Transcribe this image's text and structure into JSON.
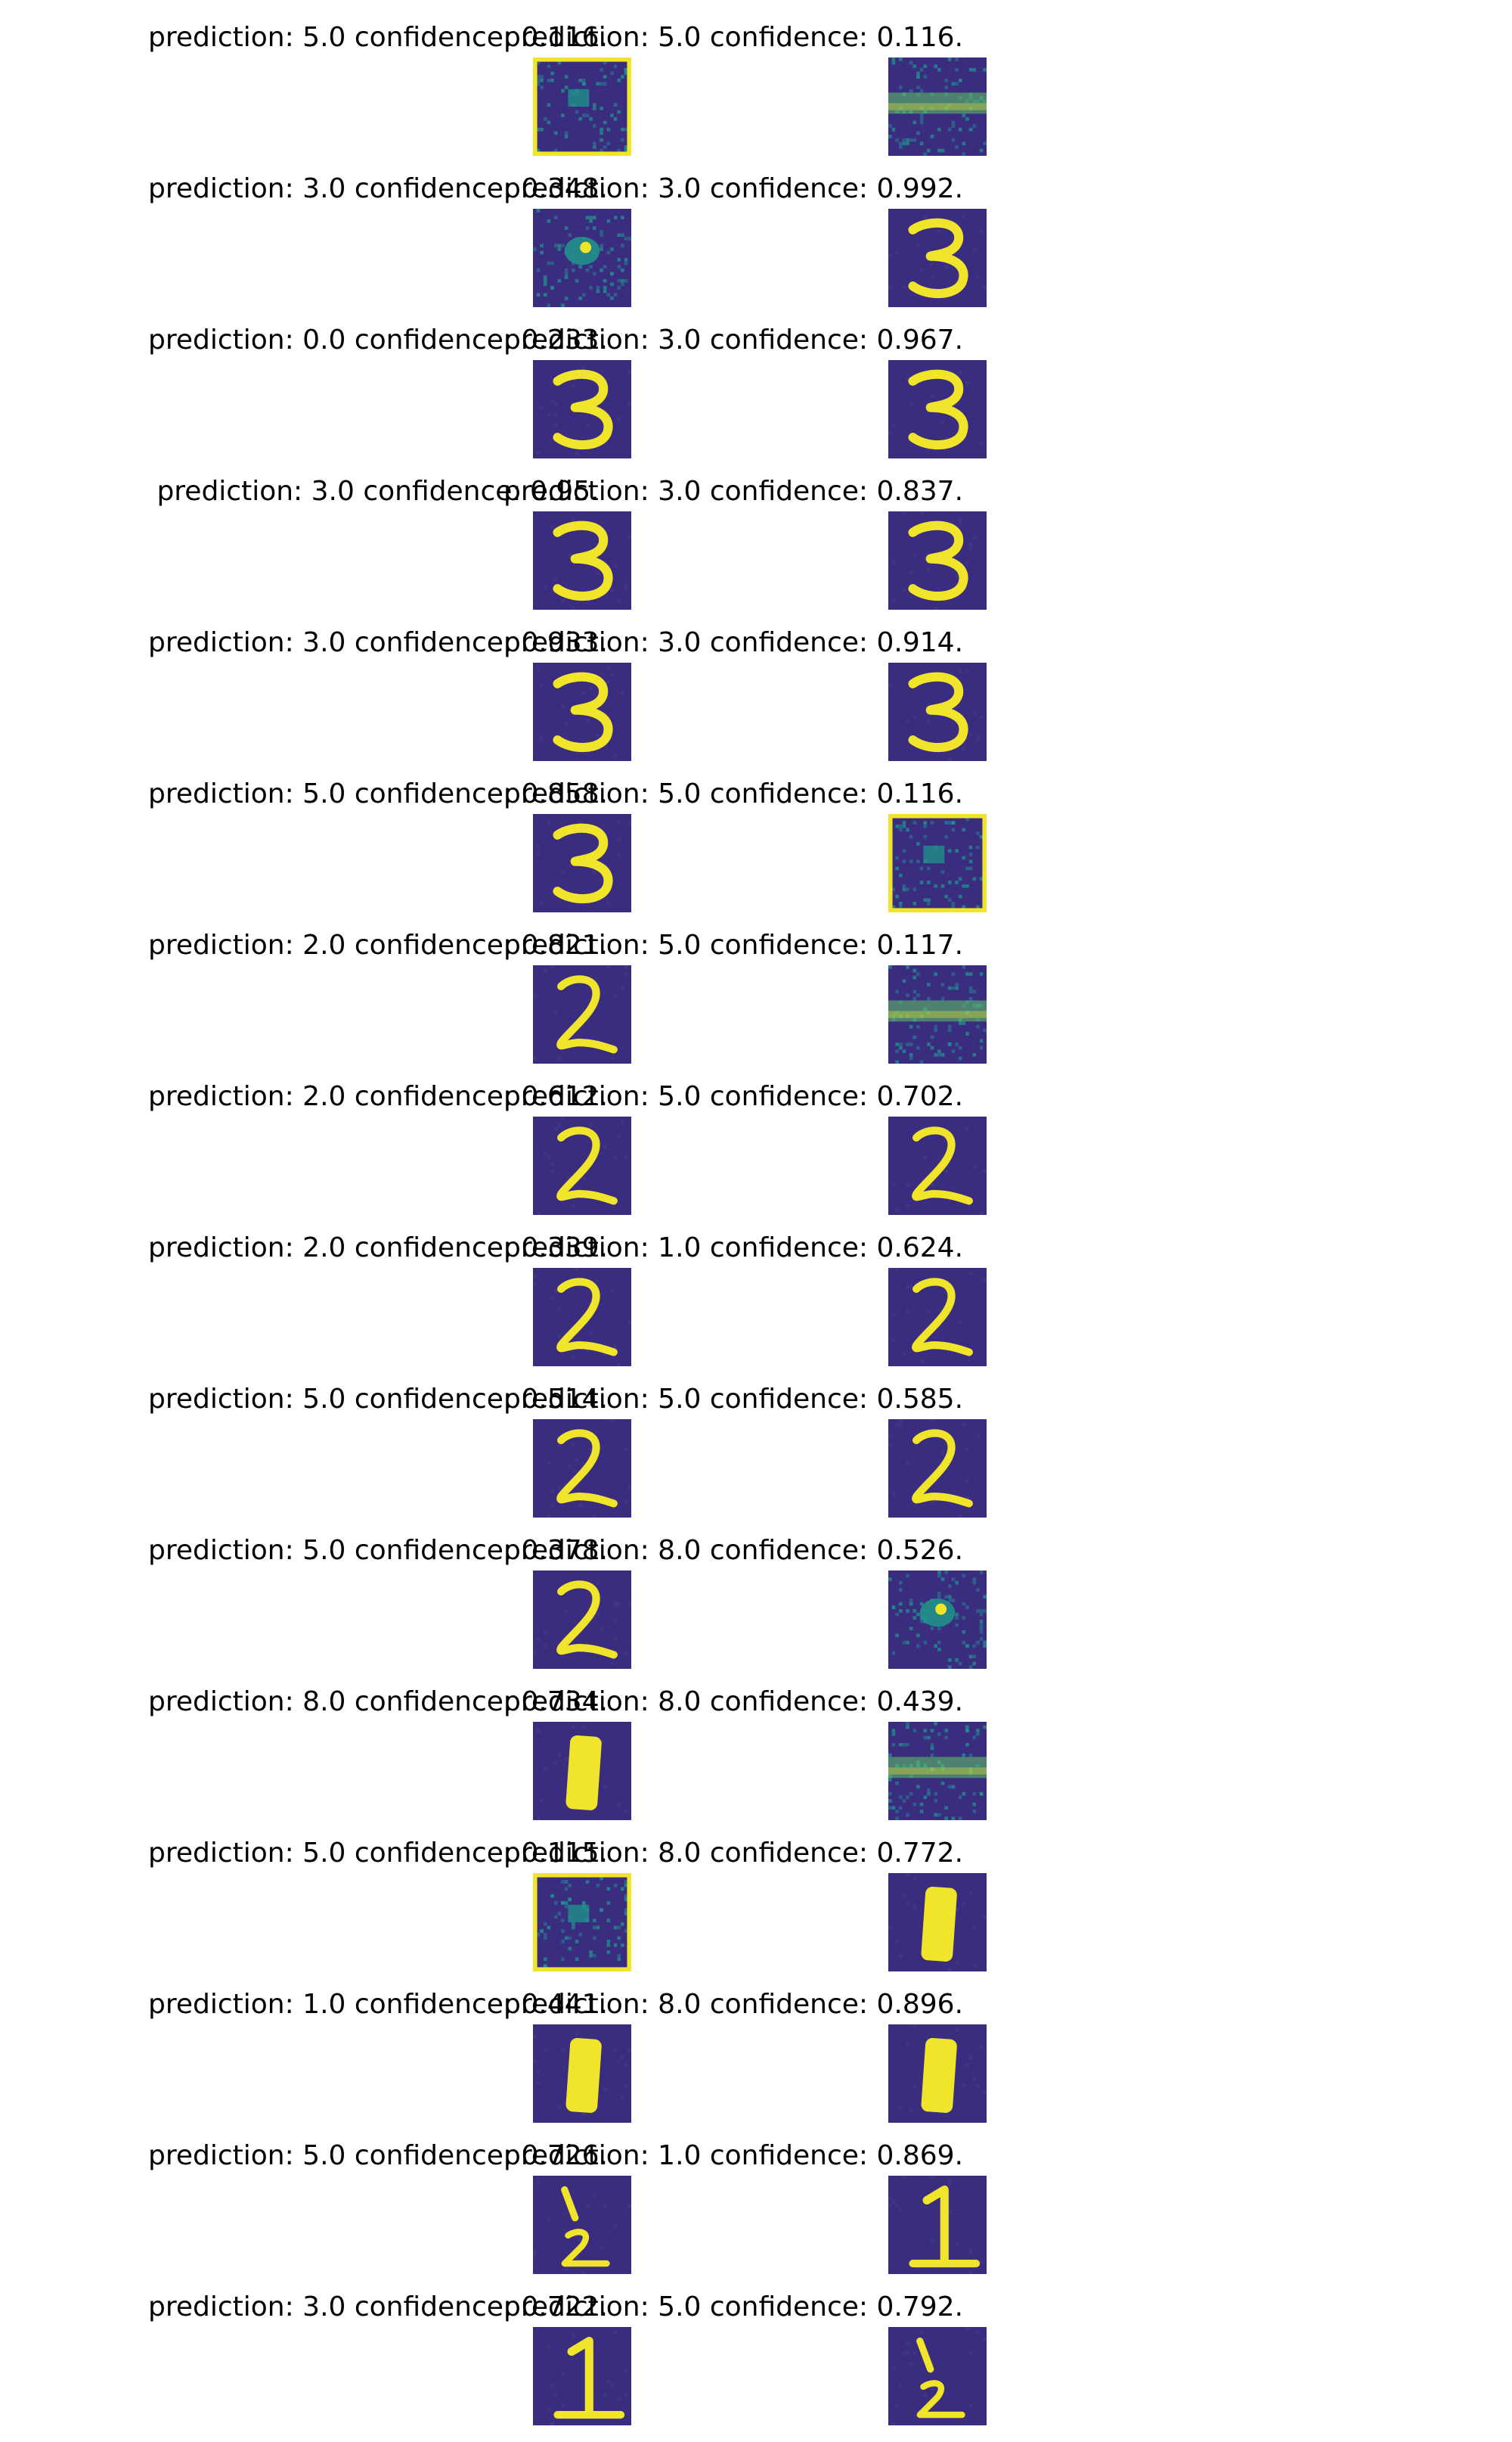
{
  "colors": {
    "background": "#3a2c7f",
    "stroke": "#f0e52a",
    "mid": "#21918c",
    "bright": "#5ec962"
  },
  "rows": [
    {
      "left": {
        "caption": "prediction: 5.0 confidence: 0.116.",
        "image": "noise-frame"
      },
      "right": {
        "caption": "prediction: 5.0 confidence: 0.116.",
        "image": "noise-band"
      }
    },
    {
      "left": {
        "caption": "prediction: 3.0 confidence: 0.348.",
        "image": "noise-blob"
      },
      "right": {
        "caption": "prediction: 3.0 confidence: 0.992.",
        "image": "digit-3"
      }
    },
    {
      "left": {
        "caption": "prediction: 0.0 confidence: 0.233.",
        "image": "digit-3"
      },
      "right": {
        "caption": "prediction: 3.0 confidence: 0.967.",
        "image": "digit-3"
      }
    },
    {
      "left": {
        "caption": "prediction: 3.0 confidence: 0.95.",
        "image": "digit-3"
      },
      "right": {
        "caption": "prediction: 3.0 confidence: 0.837.",
        "image": "digit-3"
      }
    },
    {
      "left": {
        "caption": "prediction: 3.0 confidence: 0.933.",
        "image": "digit-3"
      },
      "right": {
        "caption": "prediction: 3.0 confidence: 0.914.",
        "image": "digit-3"
      }
    },
    {
      "left": {
        "caption": "prediction: 5.0 confidence: 0.858.",
        "image": "digit-3"
      },
      "right": {
        "caption": "prediction: 5.0 confidence: 0.116.",
        "image": "noise-frame"
      }
    },
    {
      "left": {
        "caption": "prediction: 2.0 confidence: 0.821.",
        "image": "digit-2"
      },
      "right": {
        "caption": "prediction: 5.0 confidence: 0.117.",
        "image": "noise-band"
      }
    },
    {
      "left": {
        "caption": "prediction: 2.0 confidence: 0.612.",
        "image": "digit-2"
      },
      "right": {
        "caption": "prediction: 5.0 confidence: 0.702.",
        "image": "digit-2"
      }
    },
    {
      "left": {
        "caption": "prediction: 2.0 confidence: 0.339.",
        "image": "digit-2"
      },
      "right": {
        "caption": "prediction: 1.0 confidence: 0.624.",
        "image": "digit-2"
      }
    },
    {
      "left": {
        "caption": "prediction: 5.0 confidence: 0.514.",
        "image": "digit-2"
      },
      "right": {
        "caption": "prediction: 5.0 confidence: 0.585.",
        "image": "digit-2"
      }
    },
    {
      "left": {
        "caption": "prediction: 5.0 confidence: 0.378.",
        "image": "digit-2"
      },
      "right": {
        "caption": "prediction: 8.0 confidence: 0.526.",
        "image": "noise-blob"
      }
    },
    {
      "left": {
        "caption": "prediction: 8.0 confidence: 0.734.",
        "image": "digit-1-bar"
      },
      "right": {
        "caption": "prediction: 8.0 confidence: 0.439.",
        "image": "noise-band"
      }
    },
    {
      "left": {
        "caption": "prediction: 5.0 confidence: 0.115.",
        "image": "noise-frame"
      },
      "right": {
        "caption": "prediction: 8.0 confidence: 0.772.",
        "image": "digit-1-bar"
      }
    },
    {
      "left": {
        "caption": "prediction: 1.0 confidence: 0.441.",
        "image": "digit-1-bar"
      },
      "right": {
        "caption": "prediction: 8.0 confidence: 0.896.",
        "image": "digit-1-bar"
      }
    },
    {
      "left": {
        "caption": "prediction: 5.0 confidence: 0.726.",
        "image": "digit-1-2"
      },
      "right": {
        "caption": "prediction: 1.0 confidence: 0.869.",
        "image": "digit-1"
      }
    },
    {
      "left": {
        "caption": "prediction: 3.0 confidence: 0.722.",
        "image": "digit-1"
      },
      "right": {
        "caption": "prediction: 5.0 confidence: 0.792.",
        "image": "digit-1-2"
      }
    }
  ]
}
